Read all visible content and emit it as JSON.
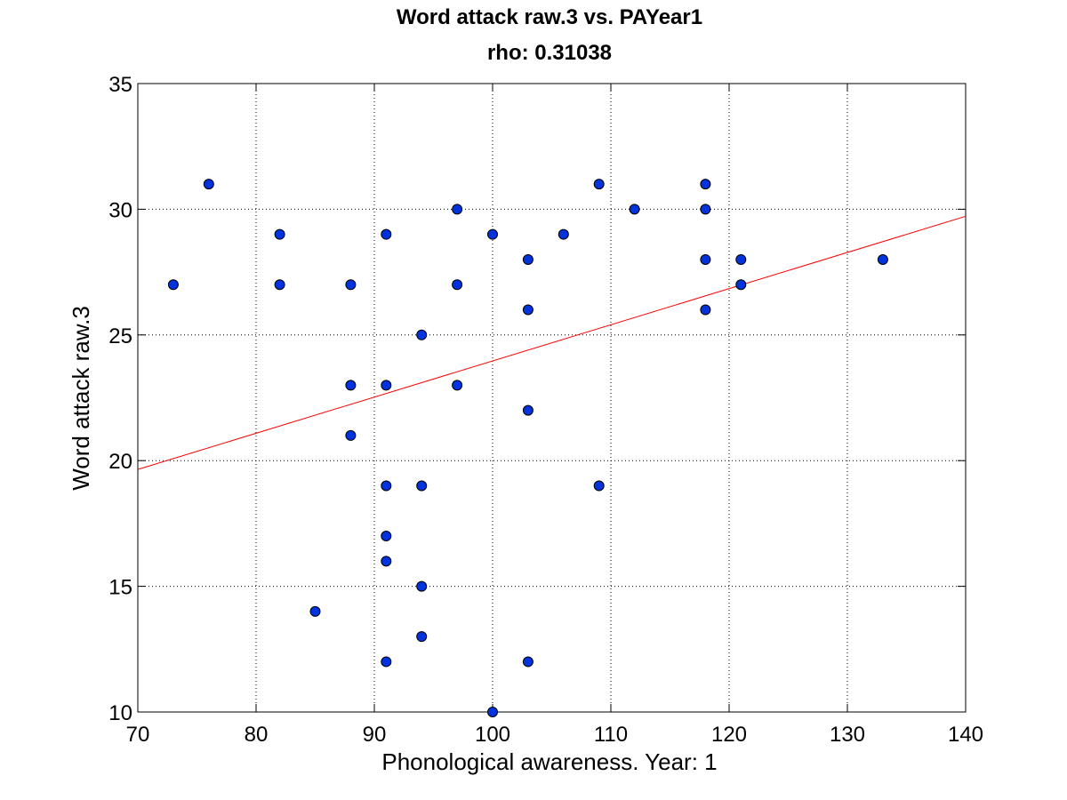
{
  "chart_data": {
    "type": "scatter",
    "title": "Word attack raw.3 vs. PAYear1",
    "subtitle": "rho: 0.31038",
    "xlabel": "Phonological awareness. Year: 1",
    "ylabel": "Word attack raw.3",
    "xlim": [
      70,
      140
    ],
    "ylim": [
      10,
      35
    ],
    "xticks": [
      70,
      80,
      90,
      100,
      110,
      120,
      130,
      140
    ],
    "yticks": [
      10,
      15,
      20,
      25,
      30,
      35
    ],
    "grid": true,
    "colors": {
      "marker_fill": "#0033dd",
      "marker_edge": "#000000",
      "fit_line": "#ff0000",
      "grid": "#000000"
    },
    "points": [
      {
        "x": 73,
        "y": 27
      },
      {
        "x": 76,
        "y": 31
      },
      {
        "x": 82,
        "y": 29
      },
      {
        "x": 82,
        "y": 27
      },
      {
        "x": 85,
        "y": 14
      },
      {
        "x": 88,
        "y": 27
      },
      {
        "x": 88,
        "y": 23
      },
      {
        "x": 88,
        "y": 21
      },
      {
        "x": 91,
        "y": 29
      },
      {
        "x": 91,
        "y": 23
      },
      {
        "x": 91,
        "y": 19
      },
      {
        "x": 91,
        "y": 17
      },
      {
        "x": 91,
        "y": 16
      },
      {
        "x": 91,
        "y": 12
      },
      {
        "x": 94,
        "y": 25
      },
      {
        "x": 94,
        "y": 19
      },
      {
        "x": 94,
        "y": 15
      },
      {
        "x": 94,
        "y": 13
      },
      {
        "x": 97,
        "y": 30
      },
      {
        "x": 97,
        "y": 27
      },
      {
        "x": 97,
        "y": 23
      },
      {
        "x": 100,
        "y": 29
      },
      {
        "x": 100,
        "y": 10
      },
      {
        "x": 103,
        "y": 28
      },
      {
        "x": 103,
        "y": 26
      },
      {
        "x": 103,
        "y": 22
      },
      {
        "x": 103,
        "y": 12
      },
      {
        "x": 106,
        "y": 29
      },
      {
        "x": 109,
        "y": 31
      },
      {
        "x": 109,
        "y": 19
      },
      {
        "x": 112,
        "y": 30
      },
      {
        "x": 118,
        "y": 31
      },
      {
        "x": 118,
        "y": 30
      },
      {
        "x": 118,
        "y": 28
      },
      {
        "x": 118,
        "y": 26
      },
      {
        "x": 121,
        "y": 28
      },
      {
        "x": 121,
        "y": 27
      },
      {
        "x": 133,
        "y": 28
      }
    ],
    "fit_line": {
      "x": [
        70,
        140
      ],
      "y": [
        19.65,
        29.72
      ]
    }
  }
}
